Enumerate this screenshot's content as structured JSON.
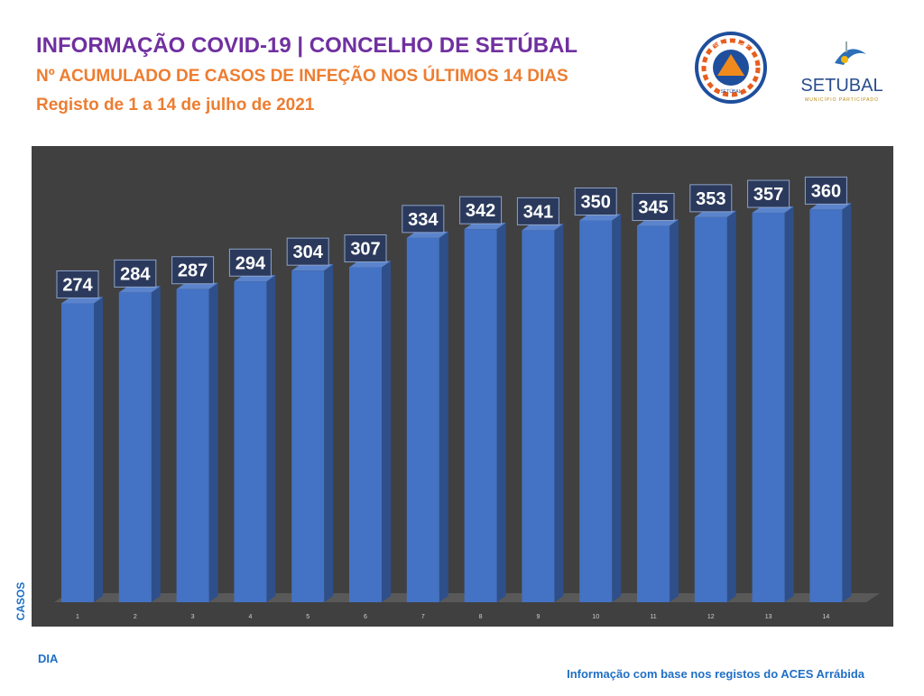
{
  "header": {
    "title": "INFORMAÇÃO COVID-19 | CONCELHO DE SETÚBAL",
    "subtitle": "Nº ACUMULADO DE CASOS DE INFEÇÃO NOS ÚLTIMOS 14 DIAS",
    "period": "Registo de 1 a 14 de julho de 2021"
  },
  "logos": {
    "civil_protection": [
      "PROTEÇÃO CIVIL",
      "SETÚBAL"
    ],
    "municipality": "SETUBAL",
    "municipality_tagline": "MUNICÍPIO PARTICIPADO"
  },
  "chart_data": {
    "type": "bar",
    "x_label": "DIA",
    "y_label": "CASOS",
    "categories": [
      "1",
      "2",
      "3",
      "4",
      "5",
      "6",
      "7",
      "8",
      "9",
      "10",
      "11",
      "12",
      "13",
      "14"
    ],
    "values": [
      274,
      284,
      287,
      294,
      304,
      307,
      334,
      342,
      341,
      350,
      345,
      353,
      357,
      360
    ],
    "color": "#4472c4"
  },
  "footer": "Informação com base nos registos do ACES Arrábida"
}
